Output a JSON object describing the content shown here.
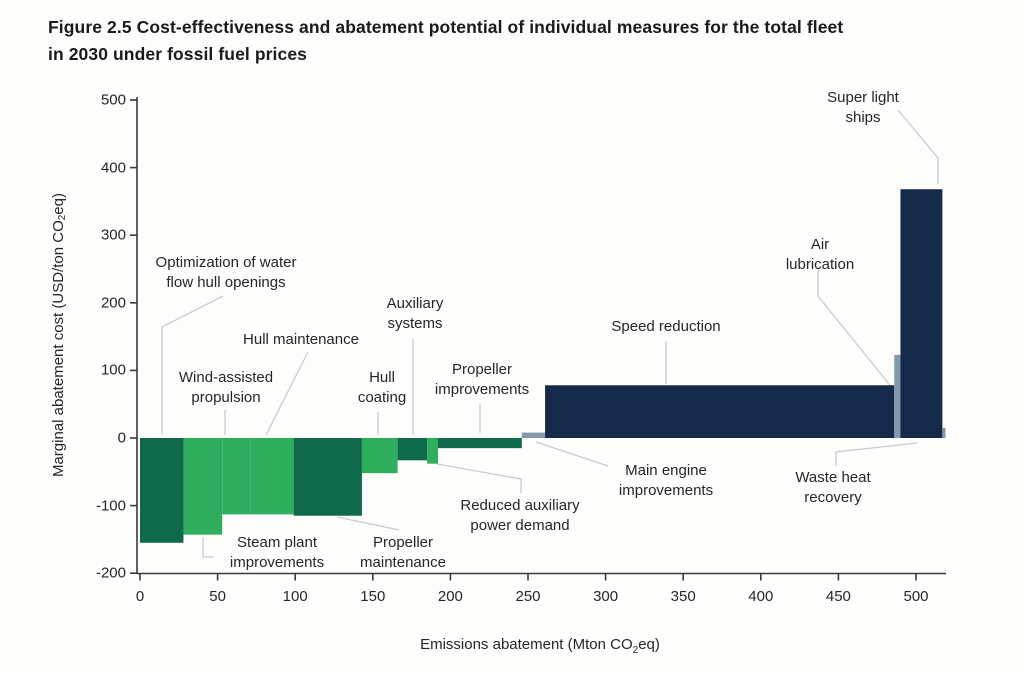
{
  "title": {
    "line1": "Figure 2.5 Cost-effectiveness and abatement potential of individual measures for the total fleet",
    "line2": "in 2030 under fossil fuel prices"
  },
  "y_axis": {
    "label_pre": "Marginal abatement cost (USD/ton CO",
    "label_sub": "2",
    "label_post": "eq)",
    "ticks": [
      500,
      400,
      300,
      200,
      100,
      0,
      -100,
      -200
    ]
  },
  "x_axis": {
    "label_pre": "Emissions abatement (Mton CO",
    "label_sub": "2",
    "label_post": "eq)",
    "ticks": [
      0,
      50,
      100,
      150,
      200,
      250,
      300,
      350,
      400,
      450,
      500
    ]
  },
  "colors": {
    "dark_green": "#0E6A4B",
    "bright_green": "#2FAE5D",
    "navy": "#15294B",
    "gray_blue": "#8598AB",
    "leader": "#CBCBCB",
    "axis": "#3A3A3A",
    "text": "#262626"
  },
  "chart_data": {
    "type": "bar",
    "title": "Cost-effectiveness and abatement potential of individual measures for the total fleet in 2030 under fossil fuel prices",
    "xlabel": "Emissions abatement (Mton CO2eq)",
    "ylabel": "Marginal abatement cost (USD/ton CO2eq)",
    "xlim": [
      0,
      520
    ],
    "ylim": [
      -200,
      500
    ],
    "grid": false,
    "legend": false,
    "bars": [
      {
        "id": "opt",
        "label": "Optimization of water flow hull openings",
        "label_lines": [
          "Optimization of water",
          "flow hull openings"
        ],
        "x_start": 0,
        "x_end": 28,
        "abatement": 28,
        "cost": -155,
        "color": "dark_green"
      },
      {
        "id": "steam",
        "label": "Steam plant improvements",
        "label_lines": [
          "Steam plant",
          "improvements"
        ],
        "x_start": 28,
        "x_end": 53,
        "abatement": 25,
        "cost": -143,
        "color": "bright_green"
      },
      {
        "id": "wind",
        "label": "Wind-assisted propulsion",
        "label_lines": [
          "Wind-assisted",
          "propulsion"
        ],
        "x_start": 53,
        "x_end": 71,
        "abatement": 18,
        "cost": -113,
        "color": "bright_green"
      },
      {
        "id": "hullmaint",
        "label": "Hull maintenance",
        "label_lines": [
          "Hull maintenance"
        ],
        "x_start": 71,
        "x_end": 99,
        "abatement": 28,
        "cost": -113,
        "color": "bright_green"
      },
      {
        "id": "propmaint",
        "label": "Propeller maintenance",
        "label_lines": [
          "Propeller",
          "maintenance"
        ],
        "x_start": 99,
        "x_end": 143,
        "abatement": 44,
        "cost": -115,
        "color": "dark_green"
      },
      {
        "id": "hullcoat",
        "label": "Hull coating",
        "label_lines": [
          "Hull",
          "coating"
        ],
        "x_start": 143,
        "x_end": 166,
        "abatement": 23,
        "cost": -52,
        "color": "bright_green"
      },
      {
        "id": "aux",
        "label": "Auxiliary systems",
        "label_lines": [
          "Auxiliary",
          "systems"
        ],
        "x_start": 166,
        "x_end": 185,
        "abatement": 19,
        "cost": -33,
        "color": "dark_green"
      },
      {
        "id": "redaux",
        "label": "Reduced auxiliary power demand",
        "label_lines": [
          "Reduced auxiliary",
          "power demand"
        ],
        "x_start": 185,
        "x_end": 192,
        "abatement": 7,
        "cost": -38,
        "color": "bright_green"
      },
      {
        "id": "propimp",
        "label": "Propeller improvements",
        "label_lines": [
          "Propeller",
          "improvements"
        ],
        "x_start": 192,
        "x_end": 246,
        "abatement": 54,
        "cost": -15,
        "color": "dark_green"
      },
      {
        "id": "mainengine",
        "label": "Main engine improvements",
        "label_lines": [
          "Main engine",
          "improvements"
        ],
        "x_start": 246,
        "x_end": 261,
        "abatement": 15,
        "cost": 8,
        "color": "gray_blue"
      },
      {
        "id": "speed",
        "label": "Speed reduction",
        "label_lines": [
          "Speed reduction"
        ],
        "x_start": 261,
        "x_end": 486,
        "abatement": 225,
        "cost": 78,
        "color": "navy"
      },
      {
        "id": "airlub",
        "label": "Air lubrication",
        "label_lines": [
          "Air",
          "lubrication"
        ],
        "x_start": 486,
        "x_end": 490,
        "abatement": 4,
        "cost": 123,
        "color": "gray_blue"
      },
      {
        "id": "superlight",
        "label": "Super light ships",
        "label_lines": [
          "Super light",
          "ships"
        ],
        "x_start": 490,
        "x_end": 517,
        "abatement": 27,
        "cost": 368,
        "color": "navy"
      },
      {
        "id": "wasteheat",
        "label": "Waste heat recovery",
        "label_lines": [
          "Waste heat",
          "recovery"
        ],
        "x_start": 517,
        "x_end": 519,
        "abatement": 2,
        "cost": 15,
        "color": "gray_blue"
      }
    ]
  }
}
